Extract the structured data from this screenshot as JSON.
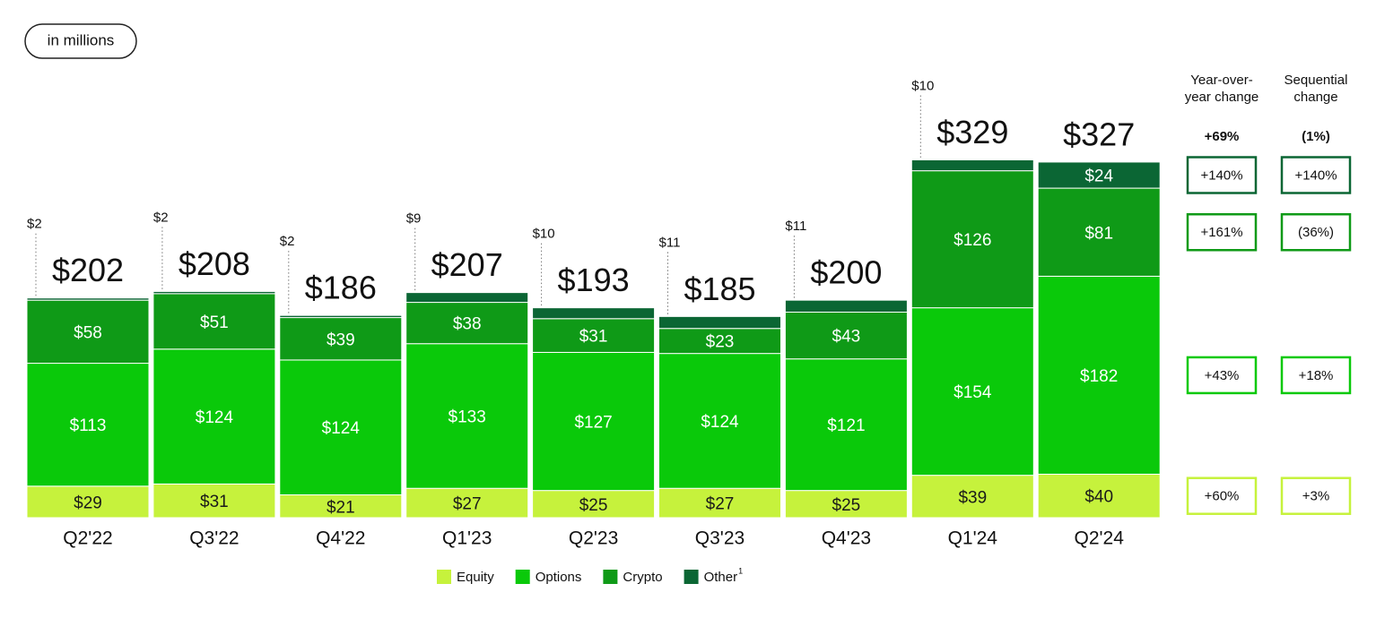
{
  "chart_data": {
    "type": "bar",
    "stacked": true,
    "unit_note": "in millions",
    "categories": [
      "Q2'22",
      "Q3'22",
      "Q4'22",
      "Q1'23",
      "Q2'23",
      "Q3'23",
      "Q4'23",
      "Q1'24",
      "Q2'24"
    ],
    "ylim": [
      0,
      336
    ],
    "series": [
      {
        "name": "Equity",
        "color": "#c6f23c",
        "label_color": "#1a1a1a",
        "values": [
          29,
          31,
          21,
          27,
          25,
          27,
          25,
          39,
          40
        ],
        "value_labels": [
          "$29",
          "$31",
          "$21",
          "$27",
          "$25",
          "$27",
          "$25",
          "$39",
          "$40"
        ]
      },
      {
        "name": "Options",
        "color": "#0ac90a",
        "label_color": "#ffffff",
        "values": [
          113,
          124,
          124,
          133,
          127,
          124,
          121,
          154,
          182
        ],
        "value_labels": [
          "$113",
          "$124",
          "$124",
          "$133",
          "$127",
          "$124",
          "$121",
          "$154",
          "$182"
        ]
      },
      {
        "name": "Crypto",
        "color": "#0f9a17",
        "label_color": "#ffffff",
        "values": [
          58,
          51,
          39,
          38,
          31,
          23,
          43,
          126,
          81
        ],
        "value_labels": [
          "$58",
          "$51",
          "$39",
          "$38",
          "$31",
          "$23",
          "$43",
          "$126",
          "$81"
        ]
      },
      {
        "name": "Other",
        "footnote": "1",
        "color": "#0b6634",
        "label_color": "#ffffff",
        "values": [
          2,
          2,
          2,
          9,
          10,
          11,
          11,
          10,
          24
        ],
        "value_labels": [
          "$2",
          "$2",
          "$2",
          "$9",
          "$10",
          "$11",
          "$11",
          "$10",
          "$24"
        ]
      }
    ],
    "totals": [
      202,
      208,
      186,
      207,
      193,
      185,
      200,
      329,
      327
    ],
    "total_labels": [
      "$202",
      "$208",
      "$186",
      "$207",
      "$193",
      "$185",
      "$200",
      "$329",
      "$327"
    ],
    "change_table": {
      "columns": [
        {
          "header": [
            "Year-over-",
            "year change"
          ],
          "total": "+69%",
          "by_series": [
            "+60%",
            "+43%",
            "+161%",
            "+140%"
          ]
        },
        {
          "header": [
            "Sequential",
            "change"
          ],
          "total": "(1%)",
          "by_series": [
            "+3%",
            "+18%",
            "(36%)",
            "+140%"
          ]
        }
      ]
    }
  }
}
